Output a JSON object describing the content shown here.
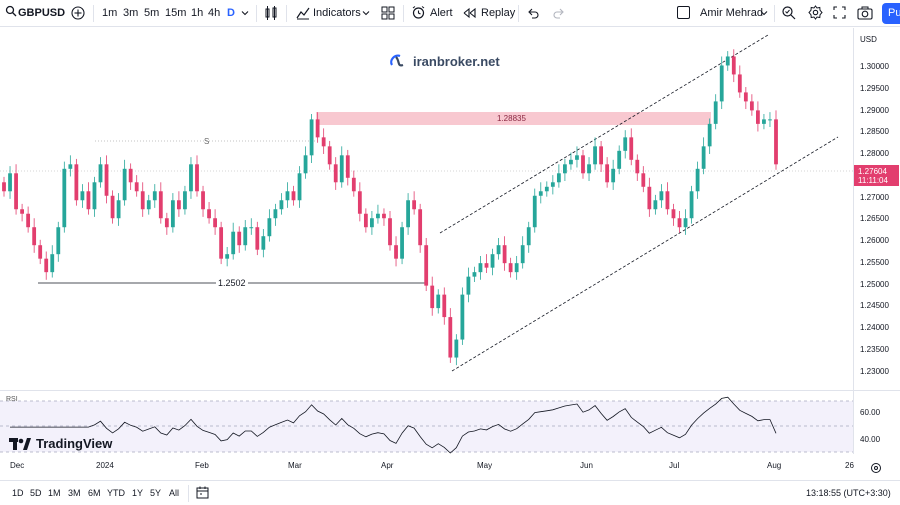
{
  "toolbar": {
    "symbol": "GBPUSD",
    "intervals": [
      "1m",
      "3m",
      "5m",
      "15m",
      "1h",
      "4h",
      "D"
    ],
    "active_interval": "D",
    "indicators_label": "Indicators",
    "alert_label": "Alert",
    "replay_label": "Replay",
    "user_name": "Amir Mehrad",
    "publish_label": "Pu"
  },
  "brand": {
    "text": "iranbroker.net"
  },
  "watermark": {
    "text": "TradingView"
  },
  "price_axis": {
    "currency": "USD",
    "ticks": [
      "1.30000",
      "1.29500",
      "1.29000",
      "1.28500",
      "1.28000",
      "1.27000",
      "1.26500",
      "1.26000",
      "1.25500",
      "1.25000",
      "1.24500",
      "1.24000",
      "1.23500",
      "1.23000"
    ],
    "last_price": "1.27604",
    "countdown": "11:11:04",
    "last_price_color": "#e23e6e"
  },
  "annotations": {
    "zone_label": "1.28835",
    "support_label": "1.2502",
    "s_marker": "S"
  },
  "rsi": {
    "name": "RSI",
    "levels": [
      "60.00",
      "40.00"
    ]
  },
  "time_axis": {
    "labels": [
      "Dec",
      "2024",
      "Feb",
      "Mar",
      "Apr",
      "May",
      "Jun",
      "Jul",
      "Aug",
      "26"
    ]
  },
  "bottombar": {
    "ranges": [
      "1D",
      "5D",
      "1M",
      "3M",
      "6M",
      "YTD",
      "1Y",
      "5Y",
      "All"
    ],
    "clock": "13:18:55 (UTC+3:30)"
  },
  "colors": {
    "up": "#26a69a",
    "down": "#e23e6e",
    "accent": "#2962ff",
    "zone": "#f8c8d0"
  },
  "chart_data": {
    "type": "candlestick",
    "symbol": "GBPUSD",
    "timeframe": "D",
    "ylim": [
      1.228,
      1.305
    ],
    "closes": [
      1.27,
      1.274,
      1.266,
      1.265,
      1.262,
      1.258,
      1.255,
      1.252,
      1.256,
      1.262,
      1.275,
      1.276,
      1.268,
      1.27,
      1.266,
      1.272,
      1.276,
      1.269,
      1.264,
      1.268,
      1.275,
      1.272,
      1.27,
      1.266,
      1.268,
      1.27,
      1.264,
      1.262,
      1.268,
      1.266,
      1.27,
      1.276,
      1.27,
      1.266,
      1.264,
      1.262,
      1.255,
      1.256,
      1.261,
      1.258,
      1.262,
      1.262,
      1.257,
      1.26,
      1.264,
      1.266,
      1.268,
      1.27,
      1.268,
      1.274,
      1.278,
      1.286,
      1.282,
      1.28,
      1.276,
      1.272,
      1.278,
      1.273,
      1.27,
      1.265,
      1.262,
      1.264,
      1.265,
      1.264,
      1.258,
      1.255,
      1.262,
      1.268,
      1.266,
      1.258,
      1.249,
      1.244,
      1.247,
      1.242,
      1.233,
      1.237,
      1.247,
      1.251,
      1.252,
      1.254,
      1.253,
      1.256,
      1.258,
      1.254,
      1.252,
      1.254,
      1.258,
      1.262,
      1.269,
      1.27,
      1.271,
      1.272,
      1.274,
      1.276,
      1.277,
      1.278,
      1.274,
      1.276,
      1.28,
      1.276,
      1.272,
      1.275,
      1.279,
      1.282,
      1.277,
      1.274,
      1.271,
      1.266,
      1.268,
      1.27,
      1.266,
      1.264,
      1.262,
      1.264,
      1.27,
      1.275,
      1.28,
      1.285,
      1.29,
      1.298,
      1.3,
      1.296,
      1.292,
      1.29,
      1.288,
      1.285,
      1.286,
      1.286,
      1.276
    ]
  }
}
